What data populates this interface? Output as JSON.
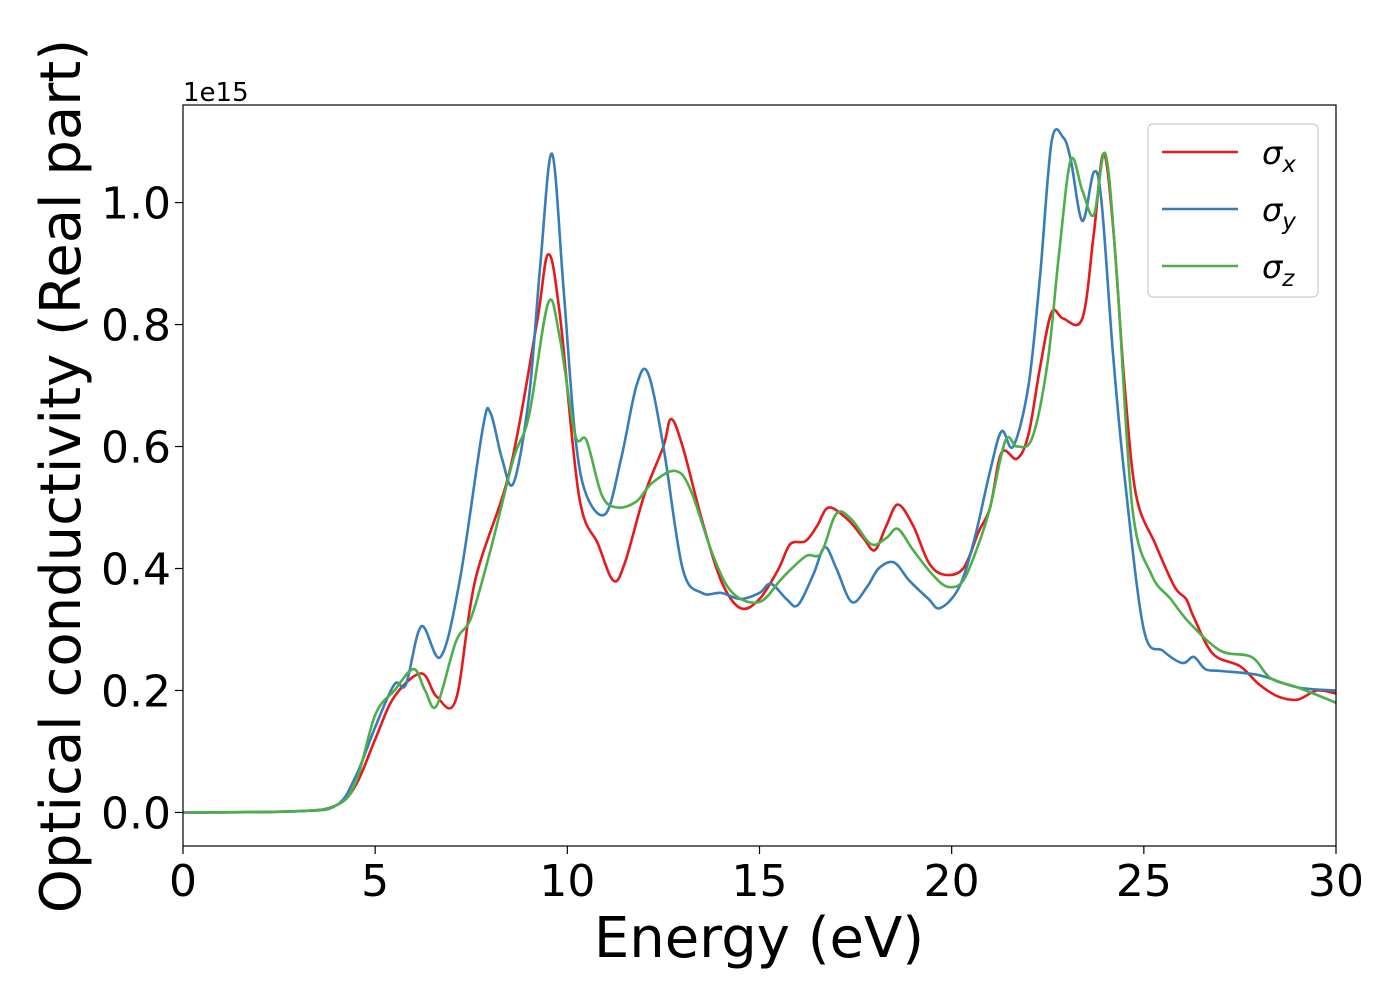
{
  "chart_data": {
    "type": "line",
    "title": "",
    "xlabel": "Energy (eV)",
    "ylabel": "Optical conductivity (Real part)",
    "y_offset_label": "1e15",
    "xlim": [
      0,
      30
    ],
    "ylim": [
      -0.055,
      1.16
    ],
    "x_ticks": [
      0,
      5,
      10,
      15,
      20,
      25,
      30
    ],
    "x_tick_labels": [
      "0",
      "5",
      "10",
      "15",
      "20",
      "25",
      "30"
    ],
    "y_ticks": [
      0.0,
      0.2,
      0.4,
      0.6,
      0.8,
      1.0
    ],
    "y_tick_labels": [
      "0.0",
      "0.2",
      "0.4",
      "0.6",
      "0.8",
      "1.0"
    ],
    "grid": false,
    "legend_position": "top-right",
    "series": [
      {
        "name": "σx",
        "symbol": "σ",
        "subscript": "x",
        "color": "#e41a1c",
        "points": [
          [
            0,
            0
          ],
          [
            3,
            0.002
          ],
          [
            4,
            0.012
          ],
          [
            4.5,
            0.045
          ],
          [
            5,
            0.12
          ],
          [
            5.5,
            0.19
          ],
          [
            6.2,
            0.228
          ],
          [
            6.6,
            0.19
          ],
          [
            7.1,
            0.185
          ],
          [
            7.6,
            0.38
          ],
          [
            8.5,
            0.56
          ],
          [
            9.2,
            0.8
          ],
          [
            9.5,
            0.915
          ],
          [
            9.8,
            0.82
          ],
          [
            10.3,
            0.52
          ],
          [
            10.8,
            0.44
          ],
          [
            11.2,
            0.38
          ],
          [
            11.5,
            0.41
          ],
          [
            12,
            0.52
          ],
          [
            12.5,
            0.6
          ],
          [
            12.7,
            0.645
          ],
          [
            13,
            0.6
          ],
          [
            13.5,
            0.48
          ],
          [
            14,
            0.38
          ],
          [
            14.5,
            0.335
          ],
          [
            15,
            0.35
          ],
          [
            15.5,
            0.4
          ],
          [
            15.8,
            0.44
          ],
          [
            16.2,
            0.445
          ],
          [
            16.5,
            0.47
          ],
          [
            16.8,
            0.5
          ],
          [
            17.3,
            0.48
          ],
          [
            17.7,
            0.45
          ],
          [
            18,
            0.43
          ],
          [
            18.3,
            0.47
          ],
          [
            18.6,
            0.505
          ],
          [
            19,
            0.47
          ],
          [
            19.4,
            0.41
          ],
          [
            19.8,
            0.39
          ],
          [
            20.3,
            0.4
          ],
          [
            20.7,
            0.46
          ],
          [
            21,
            0.5
          ],
          [
            21.3,
            0.59
          ],
          [
            21.7,
            0.58
          ],
          [
            22,
            0.62
          ],
          [
            22.3,
            0.73
          ],
          [
            22.6,
            0.82
          ],
          [
            22.9,
            0.81
          ],
          [
            23.4,
            0.81
          ],
          [
            23.7,
            0.95
          ],
          [
            23.95,
            1.08
          ],
          [
            24.2,
            0.96
          ],
          [
            24.5,
            0.7
          ],
          [
            24.8,
            0.52
          ],
          [
            25.3,
            0.44
          ],
          [
            25.8,
            0.37
          ],
          [
            26.1,
            0.35
          ],
          [
            26.3,
            0.32
          ],
          [
            26.8,
            0.26
          ],
          [
            27.5,
            0.24
          ],
          [
            28,
            0.21
          ],
          [
            28.5,
            0.19
          ],
          [
            29,
            0.185
          ],
          [
            29.5,
            0.2
          ],
          [
            30,
            0.195
          ]
        ]
      },
      {
        "name": "σy",
        "symbol": "σ",
        "subscript": "y",
        "color": "#377eb8",
        "points": [
          [
            0,
            0
          ],
          [
            3,
            0.002
          ],
          [
            4,
            0.012
          ],
          [
            4.5,
            0.06
          ],
          [
            5,
            0.14
          ],
          [
            5.5,
            0.21
          ],
          [
            5.8,
            0.21
          ],
          [
            6.2,
            0.305
          ],
          [
            6.7,
            0.255
          ],
          [
            7.2,
            0.38
          ],
          [
            7.8,
            0.63
          ],
          [
            8,
            0.655
          ],
          [
            8.3,
            0.58
          ],
          [
            8.6,
            0.54
          ],
          [
            9,
            0.68
          ],
          [
            9.3,
            0.9
          ],
          [
            9.6,
            1.08
          ],
          [
            9.9,
            0.86
          ],
          [
            10.2,
            0.62
          ],
          [
            10.5,
            0.52
          ],
          [
            11,
            0.49
          ],
          [
            11.4,
            0.58
          ],
          [
            11.8,
            0.7
          ],
          [
            12.1,
            0.72
          ],
          [
            12.5,
            0.6
          ],
          [
            13,
            0.4
          ],
          [
            13.5,
            0.36
          ],
          [
            14,
            0.36
          ],
          [
            14.5,
            0.35
          ],
          [
            15,
            0.36
          ],
          [
            15.3,
            0.375
          ],
          [
            15.7,
            0.35
          ],
          [
            16,
            0.34
          ],
          [
            16.4,
            0.39
          ],
          [
            16.7,
            0.435
          ],
          [
            17,
            0.4
          ],
          [
            17.4,
            0.345
          ],
          [
            17.8,
            0.37
          ],
          [
            18.1,
            0.4
          ],
          [
            18.5,
            0.41
          ],
          [
            18.9,
            0.38
          ],
          [
            19.4,
            0.35
          ],
          [
            19.7,
            0.335
          ],
          [
            20.2,
            0.37
          ],
          [
            20.6,
            0.45
          ],
          [
            21,
            0.56
          ],
          [
            21.3,
            0.625
          ],
          [
            21.6,
            0.6
          ],
          [
            22,
            0.7
          ],
          [
            22.3,
            0.88
          ],
          [
            22.6,
            1.1
          ],
          [
            22.9,
            1.107
          ],
          [
            23.1,
            1.07
          ],
          [
            23.4,
            0.97
          ],
          [
            23.7,
            1.05
          ],
          [
            23.9,
            1.0
          ],
          [
            24.2,
            0.75
          ],
          [
            24.5,
            0.55
          ],
          [
            25,
            0.3
          ],
          [
            25.5,
            0.265
          ],
          [
            26,
            0.245
          ],
          [
            26.3,
            0.255
          ],
          [
            26.6,
            0.235
          ],
          [
            27,
            0.232
          ],
          [
            28,
            0.225
          ],
          [
            29,
            0.205
          ],
          [
            30,
            0.2
          ]
        ]
      },
      {
        "name": "σz",
        "symbol": "σ",
        "subscript": "z",
        "color": "#4daf4a",
        "points": [
          [
            0,
            0
          ],
          [
            3,
            0.002
          ],
          [
            4,
            0.012
          ],
          [
            4.5,
            0.05
          ],
          [
            5,
            0.16
          ],
          [
            5.5,
            0.2
          ],
          [
            6,
            0.235
          ],
          [
            6.3,
            0.2
          ],
          [
            6.6,
            0.175
          ],
          [
            7.1,
            0.28
          ],
          [
            7.5,
            0.32
          ],
          [
            8,
            0.43
          ],
          [
            8.6,
            0.58
          ],
          [
            9,
            0.65
          ],
          [
            9.5,
            0.835
          ],
          [
            9.8,
            0.78
          ],
          [
            10.2,
            0.62
          ],
          [
            10.5,
            0.61
          ],
          [
            10.9,
            0.52
          ],
          [
            11.3,
            0.5
          ],
          [
            11.8,
            0.51
          ],
          [
            12.2,
            0.54
          ],
          [
            12.8,
            0.56
          ],
          [
            13.2,
            0.53
          ],
          [
            13.8,
            0.42
          ],
          [
            14.3,
            0.36
          ],
          [
            15,
            0.345
          ],
          [
            15.6,
            0.385
          ],
          [
            16.2,
            0.42
          ],
          [
            16.6,
            0.425
          ],
          [
            17,
            0.49
          ],
          [
            17.4,
            0.48
          ],
          [
            17.9,
            0.44
          ],
          [
            18.3,
            0.45
          ],
          [
            18.6,
            0.465
          ],
          [
            19,
            0.43
          ],
          [
            19.5,
            0.39
          ],
          [
            19.9,
            0.37
          ],
          [
            20.3,
            0.38
          ],
          [
            20.7,
            0.44
          ],
          [
            21,
            0.5
          ],
          [
            21.4,
            0.61
          ],
          [
            21.7,
            0.6
          ],
          [
            22.1,
            0.615
          ],
          [
            22.5,
            0.74
          ],
          [
            22.8,
            0.92
          ],
          [
            23.1,
            1.07
          ],
          [
            23.4,
            1.02
          ],
          [
            23.7,
            0.98
          ],
          [
            24,
            1.08
          ],
          [
            24.3,
            0.88
          ],
          [
            24.7,
            0.5
          ],
          [
            25.2,
            0.39
          ],
          [
            25.7,
            0.35
          ],
          [
            26.2,
            0.31
          ],
          [
            27,
            0.265
          ],
          [
            27.8,
            0.255
          ],
          [
            28.3,
            0.22
          ],
          [
            29,
            0.205
          ],
          [
            30,
            0.18
          ]
        ]
      }
    ]
  }
}
